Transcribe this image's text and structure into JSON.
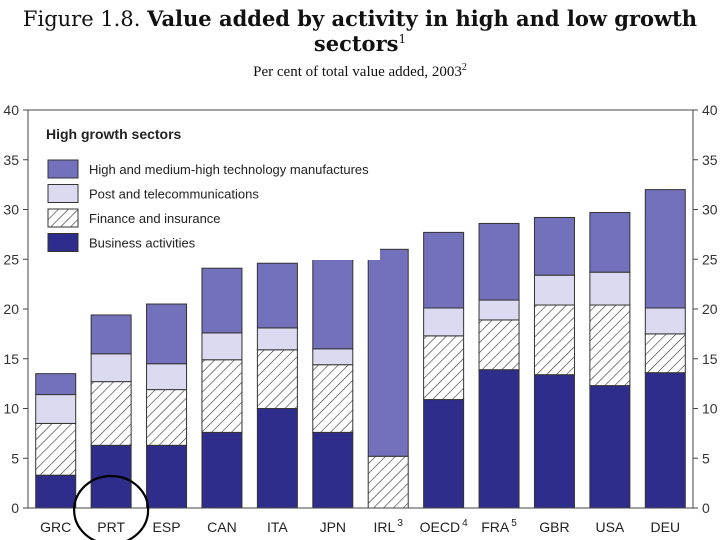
{
  "header": {
    "figure_number": "Figure 1.8.",
    "title": "Value added by activity in high and low growth sectors",
    "title_note": "1",
    "subtitle": "Per cent of total value added, 2003",
    "subtitle_note": "2"
  },
  "chart_data": {
    "type": "bar",
    "stacked": true,
    "title": "Value added by activity in high and low growth sectors",
    "subtitle": "Per cent of total value added, 2003",
    "legend_title": "High growth sectors",
    "legend_position": "top-left",
    "ylim": [
      0,
      40
    ],
    "yticks": [
      0,
      5,
      10,
      15,
      20,
      25,
      30,
      35,
      40
    ],
    "ytick_labels": [
      "0",
      "5",
      "10",
      "15",
      "20",
      "25",
      "30",
      "35",
      "40"
    ],
    "categories": [
      "GRC",
      "PRT",
      "ESP",
      "CAN",
      "ITA",
      "JPN",
      "IRL",
      "OECD",
      "FRA",
      "GBR",
      "USA",
      "DEU"
    ],
    "category_notes": [
      "",
      "",
      "",
      "",
      "",
      "",
      "3",
      "4",
      "5",
      "",
      "",
      ""
    ],
    "series": [
      {
        "name": "Business activities",
        "values": [
          3.3,
          6.3,
          6.3,
          7.6,
          10.0,
          7.6,
          0,
          10.9,
          13.9,
          13.4,
          12.3,
          13.6
        ]
      },
      {
        "name": "Finance and insurance",
        "values": [
          5.2,
          6.4,
          5.6,
          7.3,
          5.9,
          6.8,
          5.2,
          6.4,
          5.0,
          7.0,
          8.1,
          3.9
        ]
      },
      {
        "name": "Post and telecommunications",
        "values": [
          2.9,
          2.8,
          2.6,
          2.7,
          2.2,
          1.6,
          0,
          2.8,
          2.0,
          3.0,
          3.3,
          2.6
        ]
      },
      {
        "name": "High and medium-high technology manufactures",
        "values": [
          2.1,
          3.9,
          6.0,
          6.5,
          6.5,
          9.7,
          20.8,
          7.6,
          7.7,
          5.8,
          6.0,
          11.9
        ]
      }
    ],
    "legend_order": [
      "High and medium-high technology manufactures",
      "Post and telecommunications",
      "Finance and insurance",
      "Business activities"
    ],
    "colors": {
      "Business activities": "#2e2d8c",
      "Finance and insurance": "hatch",
      "Post and telecommunications": "#dcdaf0",
      "High and medium-high technology manufactures": "#7370bc"
    },
    "highlight": {
      "category": "PRT",
      "shape": "circle"
    }
  }
}
